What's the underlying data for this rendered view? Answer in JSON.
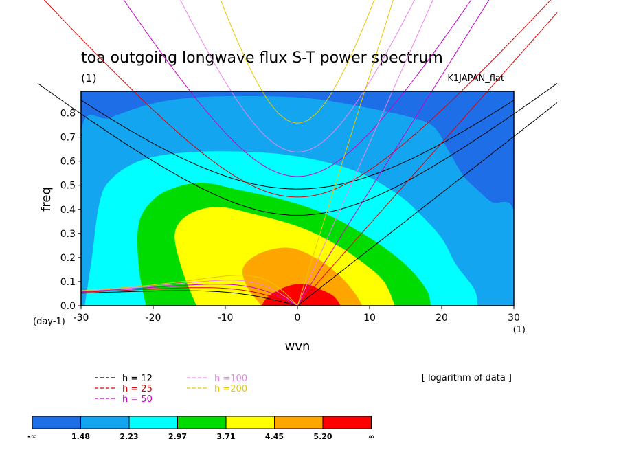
{
  "chart_data": {
    "type": "heatmap",
    "title": "toa outgoing longwave flux S-T power spectrum",
    "subtitle_left": "(1)",
    "subtitle_right": "K1JAPAN_flat",
    "xlabel": "wvn",
    "ylabel": "freq",
    "x_unit_label": "(1)",
    "y_unit_label": "(day-1)",
    "xlim": [
      -30,
      30
    ],
    "ylim": [
      0.0,
      0.89
    ],
    "xticks": [
      -30,
      -20,
      -10,
      0,
      10,
      20,
      30
    ],
    "xtick_labels": [
      "-30",
      "-20",
      "-10",
      "0",
      "10",
      "20",
      "30"
    ],
    "yticks": [
      0.0,
      0.1,
      0.2,
      0.3,
      0.4,
      0.5,
      0.6,
      0.7,
      0.8
    ],
    "ytick_labels": [
      "0.0",
      "0.1",
      "0.2",
      "0.3",
      "0.4",
      "0.5",
      "0.6",
      "0.7",
      "0.8"
    ],
    "colorbar": {
      "levels": [
        "-∞",
        "1.48",
        "2.23",
        "2.97",
        "3.71",
        "4.45",
        "5.20",
        "∞"
      ],
      "colors": [
        "#1e6ee8",
        "#14a5f0",
        "#00ffff",
        "#00dc00",
        "#ffff00",
        "#ffa500",
        "#ff0000"
      ],
      "note": "[ logarithm of data ]"
    },
    "contour_regions": [
      {
        "level_index": 1,
        "outline": [
          [
            -30,
            0.0
          ],
          [
            -30,
            0.72
          ],
          [
            -26,
            0.78
          ],
          [
            -20,
            0.84
          ],
          [
            -14,
            0.865
          ],
          [
            -6,
            0.87
          ],
          [
            2,
            0.86
          ],
          [
            10,
            0.82
          ],
          [
            16,
            0.78
          ],
          [
            19,
            0.74
          ],
          [
            21,
            0.64
          ],
          [
            23,
            0.54
          ],
          [
            25,
            0.48
          ],
          [
            27,
            0.43
          ],
          [
            30,
            0.39
          ],
          [
            30,
            0.0
          ]
        ]
      },
      {
        "level_index": 2,
        "outline": [
          [
            -29.5,
            0.0
          ],
          [
            -28.5,
            0.2
          ],
          [
            -27.5,
            0.42
          ],
          [
            -26,
            0.52
          ],
          [
            -22,
            0.6
          ],
          [
            -16,
            0.635
          ],
          [
            -8,
            0.64
          ],
          [
            0,
            0.62
          ],
          [
            8,
            0.56
          ],
          [
            14,
            0.46
          ],
          [
            17,
            0.38
          ],
          [
            20,
            0.28
          ],
          [
            22,
            0.17
          ],
          [
            24.5,
            0.07
          ],
          [
            25,
            0.0
          ]
        ]
      },
      {
        "level_index": 3,
        "outline": [
          [
            -21,
            0.0
          ],
          [
            -22,
            0.16
          ],
          [
            -22,
            0.34
          ],
          [
            -20,
            0.44
          ],
          [
            -17,
            0.49
          ],
          [
            -13,
            0.51
          ],
          [
            -8,
            0.48
          ],
          [
            -2,
            0.44
          ],
          [
            4,
            0.38
          ],
          [
            9,
            0.3
          ],
          [
            13,
            0.22
          ],
          [
            16,
            0.14
          ],
          [
            18,
            0.06
          ],
          [
            18.5,
            0.0
          ]
        ]
      },
      {
        "level_index": 4,
        "outline": [
          [
            -14,
            0.0
          ],
          [
            -16,
            0.15
          ],
          [
            -17,
            0.3
          ],
          [
            -15,
            0.38
          ],
          [
            -11,
            0.41
          ],
          [
            -6,
            0.38
          ],
          [
            0,
            0.33
          ],
          [
            5,
            0.26
          ],
          [
            9,
            0.18
          ],
          [
            12,
            0.1
          ],
          [
            13.5,
            0.0
          ]
        ]
      },
      {
        "level_index": 5,
        "outline": [
          [
            -5,
            0.0
          ],
          [
            -7,
            0.08
          ],
          [
            -7.5,
            0.16
          ],
          [
            -5,
            0.22
          ],
          [
            -1,
            0.24
          ],
          [
            3,
            0.19
          ],
          [
            6,
            0.12
          ],
          [
            8,
            0.05
          ],
          [
            9,
            0.0
          ]
        ]
      },
      {
        "level_index": 6,
        "outline": [
          [
            -5,
            0.0
          ],
          [
            -4,
            0.04
          ],
          [
            -1.5,
            0.08
          ],
          [
            1,
            0.09
          ],
          [
            3,
            0.07
          ],
          [
            5,
            0.04
          ],
          [
            6,
            0.0
          ]
        ]
      }
    ],
    "dispersion_curves": [
      {
        "name": "h = 12",
        "color": "#000000"
      },
      {
        "name": "h = 25",
        "color": "#e00000"
      },
      {
        "name": "h = 50",
        "color": "#cc00cc"
      },
      {
        "name": "h =100",
        "color": "#ee82ee"
      },
      {
        "name": "h =200",
        "color": "#e6c800"
      }
    ],
    "legend_position": "bottom-left"
  }
}
